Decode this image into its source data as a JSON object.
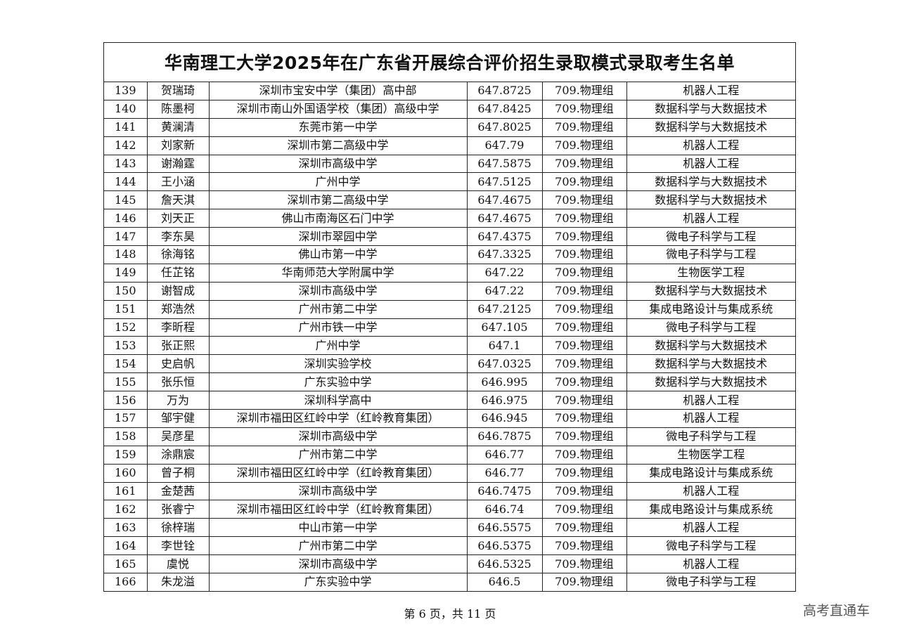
{
  "title": "华南理工大学2025年在广东省开展综合评价招生录取模式录取考生名单",
  "rows": [
    [
      "139",
      "贺瑞琦",
      "深圳市宝安中学（集团）高中部",
      "647.8725",
      "709.物理组",
      "机器人工程"
    ],
    [
      "140",
      "陈墨柯",
      "深圳市南山外国语学校（集团）高级中学",
      "647.8425",
      "709.物理组",
      "数据科学与大数据技术"
    ],
    [
      "141",
      "黄澜清",
      "东莞市第一中学",
      "647.8025",
      "709.物理组",
      "数据科学与大数据技术"
    ],
    [
      "142",
      "刘家新",
      "深圳市第二高级中学",
      "647.79",
      "709.物理组",
      "机器人工程"
    ],
    [
      "143",
      "谢瀚霆",
      "深圳市高级中学",
      "647.5875",
      "709.物理组",
      "机器人工程"
    ],
    [
      "144",
      "王小涵",
      "广州中学",
      "647.5125",
      "709.物理组",
      "数据科学与大数据技术"
    ],
    [
      "145",
      "詹天淇",
      "深圳市第二高级中学",
      "647.4675",
      "709.物理组",
      "数据科学与大数据技术"
    ],
    [
      "146",
      "刘天正",
      "佛山市南海区石门中学",
      "647.4675",
      "709.物理组",
      "机器人工程"
    ],
    [
      "147",
      "李东昊",
      "深圳市翠园中学",
      "647.4375",
      "709.物理组",
      "微电子科学与工程"
    ],
    [
      "148",
      "徐海铭",
      "佛山市第一中学",
      "647.3325",
      "709.物理组",
      "微电子科学与工程"
    ],
    [
      "149",
      "任芷铭",
      "华南师范大学附属中学",
      "647.22",
      "709.物理组",
      "生物医学工程"
    ],
    [
      "150",
      "谢智成",
      "深圳市高级中学",
      "647.22",
      "709.物理组",
      "数据科学与大数据技术"
    ],
    [
      "151",
      "郑浩然",
      "广州市第二中学",
      "647.2125",
      "709.物理组",
      "集成电路设计与集成系统"
    ],
    [
      "152",
      "李昕程",
      "广州市铁一中学",
      "647.105",
      "709.物理组",
      "微电子科学与工程"
    ],
    [
      "153",
      "张正熙",
      "广州中学",
      "647.1",
      "709.物理组",
      "数据科学与大数据技术"
    ],
    [
      "154",
      "史启帆",
      "深圳实验学校",
      "647.0325",
      "709.物理组",
      "数据科学与大数据技术"
    ],
    [
      "155",
      "张乐恒",
      "广东实验中学",
      "646.995",
      "709.物理组",
      "数据科学与大数据技术"
    ],
    [
      "156",
      "万为",
      "深圳科学高中",
      "646.975",
      "709.物理组",
      "机器人工程"
    ],
    [
      "157",
      "邹宇健",
      "深圳市福田区红岭中学（红岭教育集团）",
      "646.945",
      "709.物理组",
      "机器人工程"
    ],
    [
      "158",
      "吴彦星",
      "深圳市高级中学",
      "646.7875",
      "709.物理组",
      "微电子科学与工程"
    ],
    [
      "159",
      "涂鼎宸",
      "广州市第二中学",
      "646.77",
      "709.物理组",
      "生物医学工程"
    ],
    [
      "160",
      "曾子桐",
      "深圳市福田区红岭中学（红岭教育集团）",
      "646.77",
      "709.物理组",
      "集成电路设计与集成系统"
    ],
    [
      "161",
      "金楚茜",
      "深圳市高级中学",
      "646.7475",
      "709.物理组",
      "机器人工程"
    ],
    [
      "162",
      "张睿宁",
      "深圳市福田区红岭中学（红岭教育集团）",
      "646.74",
      "709.物理组",
      "集成电路设计与集成系统"
    ],
    [
      "163",
      "徐梓瑞",
      "中山市第一中学",
      "646.5575",
      "709.物理组",
      "机器人工程"
    ],
    [
      "164",
      "李世铨",
      "广州市第二中学",
      "646.5375",
      "709.物理组",
      "微电子科学与工程"
    ],
    [
      "165",
      "虞悦",
      "深圳市高级中学",
      "646.5325",
      "709.物理组",
      "机器人工程"
    ],
    [
      "166",
      "朱龙溢",
      "广东实验中学",
      "646.5",
      "709.物理组",
      "微电子科学与工程"
    ]
  ],
  "footer": "第 6 页，共 11 页",
  "watermark": "高考直通车"
}
